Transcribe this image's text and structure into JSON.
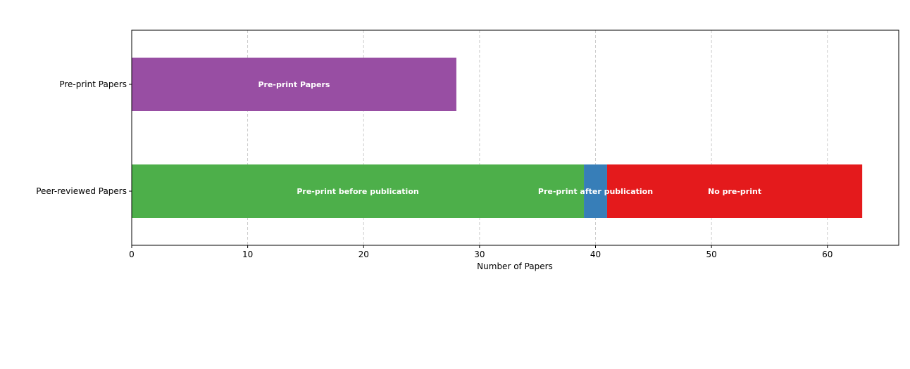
{
  "chart_data": {
    "type": "bar",
    "orientation": "horizontal",
    "stacked": true,
    "title": "",
    "xlabel": "Number of Papers",
    "ylabel": "",
    "xlim": [
      0,
      66.15
    ],
    "xticks": [
      0,
      10,
      20,
      30,
      40,
      50,
      60
    ],
    "grid": "x-dashed",
    "categories": [
      "Peer-reviewed Papers",
      "Pre-print Papers"
    ],
    "segments": [
      {
        "category": "Pre-print Papers",
        "label": "Pre-print Papers",
        "value": 28,
        "start": 0,
        "color": "#984ea3"
      },
      {
        "category": "Peer-reviewed Papers",
        "label": "Pre-print before publication",
        "value": 39,
        "start": 0,
        "color": "#4daf4a"
      },
      {
        "category": "Peer-reviewed Papers",
        "label": "Pre-print after publication",
        "value": 2,
        "start": 39,
        "color": "#377eb8"
      },
      {
        "category": "Peer-reviewed Papers",
        "label": "No pre-print",
        "value": 22,
        "start": 41,
        "color": "#e41a1c"
      }
    ]
  }
}
